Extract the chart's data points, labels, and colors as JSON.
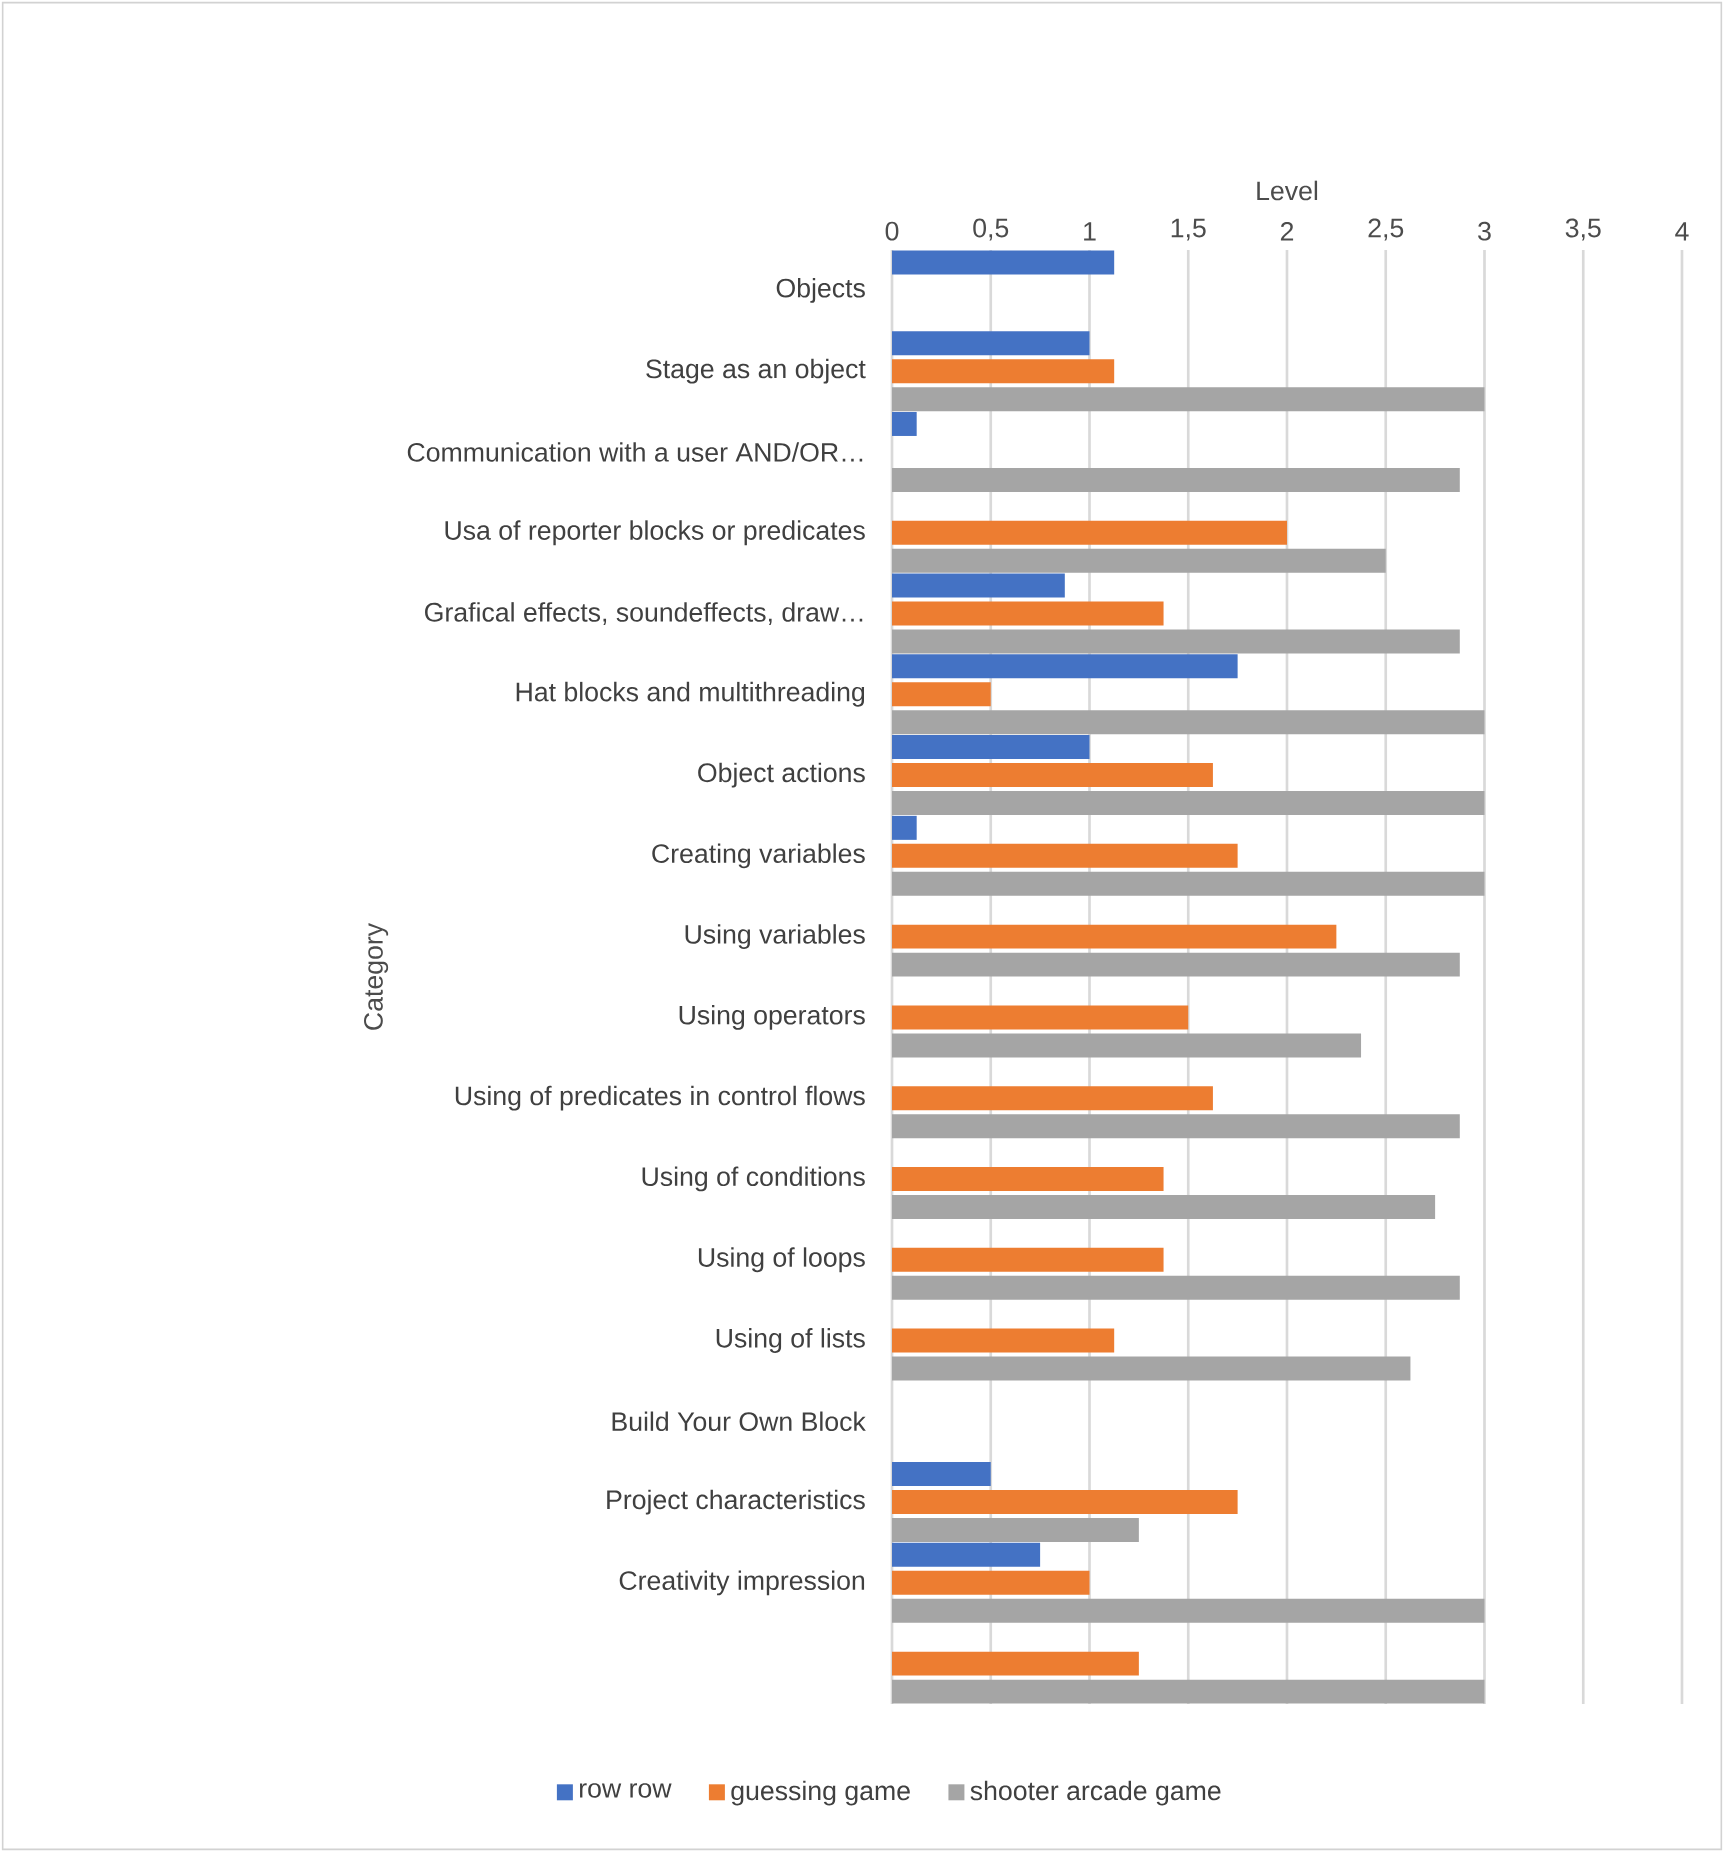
{
  "chart_data": {
    "type": "bar",
    "orientation": "horizontal",
    "xlabel": "Level",
    "ylabel": "Category",
    "categories": [
      "Objects",
      "Stage as an object",
      "Communication with a user AND/OR…",
      "Usa of reporter blocks or predicates",
      "Grafical effects, soundeffects, draw…",
      "Hat blocks and multithreading",
      "Object actions",
      "Creating variables",
      "Using variables",
      "Using operators",
      "Using of predicates in control flows",
      "Using of conditions",
      "Using of loops",
      "Using of lists",
      "Build Your Own Block",
      "Project characteristics",
      "Creativity impression",
      null
    ],
    "series": [
      {
        "name": "row row",
        "color": "#4472c4",
        "values": [
          1.125,
          1.0,
          0.125,
          null,
          0.875,
          1.75,
          1.0,
          0.125,
          null,
          null,
          null,
          null,
          null,
          null,
          null,
          0.5,
          0.75,
          null
        ]
      },
      {
        "name": "guessing game",
        "color": "#ed7d31",
        "values": [
          null,
          1.125,
          null,
          2.0,
          1.375,
          0.5,
          1.625,
          1.75,
          2.25,
          1.5,
          1.625,
          1.375,
          1.375,
          1.125,
          null,
          1.75,
          1.0,
          1.25
        ]
      },
      {
        "name": "shooter arcade game",
        "color": "#a5a5a5",
        "values": [
          null,
          3,
          2.875,
          2.5,
          2.875,
          3,
          3,
          3,
          2.875,
          2.375,
          2.875,
          2.75,
          2.875,
          2.625,
          null,
          1.25,
          3,
          3
        ]
      }
    ],
    "xlim": [
      0,
      4
    ],
    "xticks": [
      0,
      {
        "value": 0.5,
        "label": "0,5"
      },
      1,
      {
        "value": 1.5,
        "label": "1,5"
      },
      2,
      {
        "value": 2.5,
        "label": "2,5"
      },
      3,
      {
        "value": 3.5,
        "label": "3,5"
      },
      4
    ],
    "grid": "x",
    "legend": "bottom"
  }
}
